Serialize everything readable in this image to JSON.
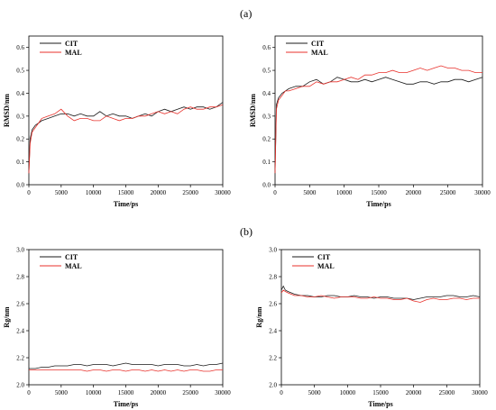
{
  "labels": {
    "a": "(a)",
    "b": "(b)"
  },
  "colors": {
    "CIT": "#1a1a1a",
    "MAL": "#e8312b"
  },
  "chart_data": [
    {
      "type": "line",
      "xlabel": "Time/ps",
      "ylabel": "RMSD/nm",
      "xlim": [
        0,
        30000
      ],
      "ylim": [
        0.0,
        0.65
      ],
      "xticks": [
        "0",
        "5000",
        "10000",
        "15000",
        "20000",
        "25000",
        "30000"
      ],
      "yticks": [
        "0.0",
        "0.1",
        "0.2",
        "0.3",
        "0.4",
        "0.5",
        "0.6"
      ],
      "legend": "top-left",
      "series": [
        {
          "name": "CIT",
          "x": [
            0,
            200,
            500,
            1000,
            1500,
            2000,
            3000,
            4000,
            5000,
            6000,
            7000,
            8000,
            9000,
            10000,
            11000,
            12000,
            13000,
            14000,
            15000,
            16000,
            17000,
            18000,
            19000,
            20000,
            21000,
            22000,
            23000,
            24000,
            25000,
            26000,
            27000,
            28000,
            29000,
            30000
          ],
          "y": [
            0.05,
            0.2,
            0.24,
            0.26,
            0.27,
            0.28,
            0.29,
            0.3,
            0.31,
            0.31,
            0.3,
            0.31,
            0.3,
            0.3,
            0.32,
            0.3,
            0.31,
            0.3,
            0.3,
            0.29,
            0.3,
            0.31,
            0.3,
            0.32,
            0.33,
            0.32,
            0.33,
            0.34,
            0.33,
            0.34,
            0.34,
            0.33,
            0.34,
            0.36
          ]
        },
        {
          "name": "MAL",
          "x": [
            0,
            200,
            500,
            1000,
            1500,
            2000,
            3000,
            4000,
            5000,
            6000,
            7000,
            8000,
            9000,
            10000,
            11000,
            12000,
            13000,
            14000,
            15000,
            16000,
            17000,
            18000,
            19000,
            20000,
            21000,
            22000,
            23000,
            24000,
            25000,
            26000,
            27000,
            28000,
            29000,
            30000
          ],
          "y": [
            0.05,
            0.18,
            0.23,
            0.25,
            0.27,
            0.29,
            0.3,
            0.31,
            0.33,
            0.3,
            0.28,
            0.29,
            0.29,
            0.28,
            0.28,
            0.3,
            0.29,
            0.28,
            0.29,
            0.29,
            0.3,
            0.3,
            0.31,
            0.32,
            0.31,
            0.32,
            0.31,
            0.33,
            0.34,
            0.33,
            0.33,
            0.34,
            0.34,
            0.35
          ]
        }
      ]
    },
    {
      "type": "line",
      "xlabel": "Time/ps",
      "ylabel": "RMSD/nm",
      "xlim": [
        0,
        30000
      ],
      "ylim": [
        0.0,
        0.65
      ],
      "xticks": [
        "0",
        "5000",
        "10000",
        "15000",
        "20000",
        "25000",
        "30000"
      ],
      "yticks": [
        "0.0",
        "0.1",
        "0.2",
        "0.3",
        "0.4",
        "0.5",
        "0.6"
      ],
      "legend": "top-left",
      "series": [
        {
          "name": "CIT",
          "x": [
            0,
            200,
            500,
            1000,
            1500,
            2000,
            3000,
            4000,
            5000,
            6000,
            7000,
            8000,
            9000,
            10000,
            11000,
            12000,
            13000,
            14000,
            15000,
            16000,
            17000,
            18000,
            19000,
            20000,
            21000,
            22000,
            23000,
            24000,
            25000,
            26000,
            27000,
            28000,
            29000,
            30000
          ],
          "y": [
            0.05,
            0.35,
            0.38,
            0.4,
            0.41,
            0.42,
            0.43,
            0.43,
            0.45,
            0.46,
            0.44,
            0.45,
            0.47,
            0.46,
            0.45,
            0.45,
            0.46,
            0.45,
            0.46,
            0.47,
            0.46,
            0.45,
            0.44,
            0.44,
            0.45,
            0.45,
            0.44,
            0.45,
            0.45,
            0.46,
            0.46,
            0.45,
            0.46,
            0.47
          ]
        },
        {
          "name": "MAL",
          "x": [
            0,
            200,
            500,
            1000,
            1500,
            2000,
            3000,
            4000,
            5000,
            6000,
            7000,
            8000,
            9000,
            10000,
            11000,
            12000,
            13000,
            14000,
            15000,
            16000,
            17000,
            18000,
            19000,
            20000,
            21000,
            22000,
            23000,
            24000,
            25000,
            26000,
            27000,
            28000,
            29000,
            30000
          ],
          "y": [
            0.05,
            0.33,
            0.37,
            0.39,
            0.41,
            0.41,
            0.42,
            0.43,
            0.43,
            0.45,
            0.44,
            0.45,
            0.45,
            0.46,
            0.47,
            0.46,
            0.48,
            0.48,
            0.49,
            0.49,
            0.5,
            0.49,
            0.49,
            0.5,
            0.51,
            0.5,
            0.51,
            0.52,
            0.51,
            0.51,
            0.5,
            0.5,
            0.49,
            0.49
          ]
        }
      ]
    },
    {
      "type": "line",
      "xlabel": "Time/ps",
      "ylabel": "Rg/nm",
      "xlim": [
        0,
        30000
      ],
      "ylim": [
        2.0,
        3.0
      ],
      "xticks": [
        "0",
        "5000",
        "10000",
        "15000",
        "20000",
        "25000",
        "30000"
      ],
      "yticks": [
        "2.0",
        "2.2",
        "2.4",
        "2.6",
        "2.8",
        "3.0"
      ],
      "legend": "top-left",
      "series": [
        {
          "name": "CIT",
          "x": [
            0,
            1000,
            2000,
            3000,
            4000,
            5000,
            6000,
            7000,
            8000,
            9000,
            10000,
            11000,
            12000,
            13000,
            14000,
            15000,
            16000,
            17000,
            18000,
            19000,
            20000,
            21000,
            22000,
            23000,
            24000,
            25000,
            26000,
            27000,
            28000,
            29000,
            30000
          ],
          "y": [
            2.12,
            2.12,
            2.13,
            2.13,
            2.14,
            2.14,
            2.14,
            2.15,
            2.15,
            2.14,
            2.15,
            2.15,
            2.15,
            2.14,
            2.15,
            2.16,
            2.15,
            2.15,
            2.15,
            2.15,
            2.14,
            2.15,
            2.15,
            2.15,
            2.14,
            2.14,
            2.15,
            2.14,
            2.15,
            2.15,
            2.16
          ]
        },
        {
          "name": "MAL",
          "x": [
            0,
            1000,
            2000,
            3000,
            4000,
            5000,
            6000,
            7000,
            8000,
            9000,
            10000,
            11000,
            12000,
            13000,
            14000,
            15000,
            16000,
            17000,
            18000,
            19000,
            20000,
            21000,
            22000,
            23000,
            24000,
            25000,
            26000,
            27000,
            28000,
            29000,
            30000
          ],
          "y": [
            2.11,
            2.11,
            2.11,
            2.11,
            2.11,
            2.11,
            2.11,
            2.11,
            2.11,
            2.1,
            2.11,
            2.11,
            2.1,
            2.11,
            2.11,
            2.1,
            2.11,
            2.11,
            2.1,
            2.11,
            2.1,
            2.11,
            2.1,
            2.11,
            2.1,
            2.11,
            2.11,
            2.1,
            2.1,
            2.11,
            2.11
          ]
        }
      ]
    },
    {
      "type": "line",
      "xlabel": "Time/ps",
      "ylabel": "Rg/nm",
      "xlim": [
        0,
        30000
      ],
      "ylim": [
        2.0,
        3.0
      ],
      "xticks": [
        "0",
        "5000",
        "10000",
        "15000",
        "20000",
        "25000",
        "30000"
      ],
      "yticks": [
        "2.0",
        "2.2",
        "2.4",
        "2.6",
        "2.8",
        "3.0"
      ],
      "legend": "top-left",
      "series": [
        {
          "name": "CIT",
          "x": [
            0,
            300,
            600,
            1000,
            1500,
            2000,
            3000,
            4000,
            5000,
            6000,
            7000,
            8000,
            9000,
            10000,
            11000,
            12000,
            13000,
            14000,
            15000,
            16000,
            17000,
            18000,
            19000,
            20000,
            21000,
            22000,
            23000,
            24000,
            25000,
            26000,
            27000,
            28000,
            29000,
            30000
          ],
          "y": [
            2.7,
            2.73,
            2.7,
            2.69,
            2.68,
            2.67,
            2.66,
            2.66,
            2.65,
            2.65,
            2.66,
            2.66,
            2.65,
            2.65,
            2.66,
            2.65,
            2.65,
            2.64,
            2.65,
            2.65,
            2.64,
            2.64,
            2.64,
            2.63,
            2.64,
            2.65,
            2.65,
            2.65,
            2.66,
            2.66,
            2.65,
            2.65,
            2.66,
            2.65
          ]
        },
        {
          "name": "MAL",
          "x": [
            0,
            300,
            600,
            1000,
            1500,
            2000,
            3000,
            4000,
            5000,
            6000,
            7000,
            8000,
            9000,
            10000,
            11000,
            12000,
            13000,
            14000,
            15000,
            16000,
            17000,
            18000,
            19000,
            20000,
            21000,
            22000,
            23000,
            24000,
            25000,
            26000,
            27000,
            28000,
            29000,
            30000
          ],
          "y": [
            2.68,
            2.7,
            2.69,
            2.68,
            2.67,
            2.66,
            2.66,
            2.65,
            2.65,
            2.66,
            2.65,
            2.64,
            2.65,
            2.65,
            2.65,
            2.64,
            2.64,
            2.65,
            2.64,
            2.64,
            2.63,
            2.63,
            2.64,
            2.62,
            2.61,
            2.63,
            2.64,
            2.63,
            2.63,
            2.64,
            2.64,
            2.63,
            2.64,
            2.64
          ]
        }
      ]
    }
  ]
}
